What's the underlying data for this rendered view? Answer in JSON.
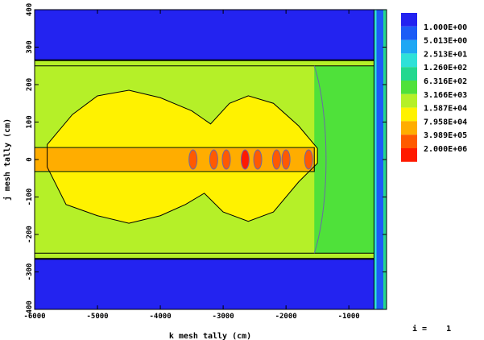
{
  "chart_data": {
    "type": "heatmap",
    "title": "",
    "xlabel": "k mesh tally (cm)",
    "ylabel": "j mesh tally (cm)",
    "xlim": [
      -6000,
      -400
    ],
    "ylim": [
      -400,
      400
    ],
    "xticks": [
      "-6000",
      "-5000",
      "-4000",
      "-3000",
      "-2000",
      "-1000"
    ],
    "yticks": [
      "-400",
      "-300",
      "-200",
      "-100",
      "0",
      "100",
      "200",
      "300",
      "400"
    ],
    "legend_position": "right",
    "legend": [
      {
        "label": "",
        "color": "#2323f0"
      },
      {
        "label": "1.000E+00",
        "color": "#1c5cf6"
      },
      {
        "label": "5.013E+00",
        "color": "#1ea7f4"
      },
      {
        "label": "2.513E+01",
        "color": "#2fe1d8"
      },
      {
        "label": "1.260E+02",
        "color": "#23d88f"
      },
      {
        "label": "6.316E+02",
        "color": "#4fe13a"
      },
      {
        "label": "3.166E+03",
        "color": "#b5f028"
      },
      {
        "label": "1.587E+04",
        "color": "#fff200"
      },
      {
        "label": "7.958E+04",
        "color": "#ffad00"
      },
      {
        "label": "3.989E+05",
        "color": "#ff5a00"
      },
      {
        "label": "2.000E+06",
        "color": "#ff1a00"
      }
    ],
    "regions": [
      {
        "name": "upper-blue-band",
        "x": [
          -6000,
          -600
        ],
        "y": [
          265,
          400
        ],
        "color_level": 0
      },
      {
        "name": "lower-blue-band",
        "x": [
          -6000,
          -600
        ],
        "y": [
          -400,
          -265
        ],
        "color_level": 0
      },
      {
        "name": "left-light-green",
        "x": [
          -6000,
          -1550
        ],
        "y": [
          -250,
          250
        ],
        "color_level": 6
      },
      {
        "name": "right-green-zone",
        "x": [
          -1550,
          -600
        ],
        "y": [
          -250,
          250
        ],
        "color_level": 5
      },
      {
        "name": "yellow-region",
        "x": [
          -5800,
          -1500
        ],
        "y": [
          -170,
          185
        ],
        "color_level": 7
      },
      {
        "name": "orange-core",
        "x": [
          -6000,
          -1550
        ],
        "y": [
          -30,
          30
        ],
        "color_level": 8
      },
      {
        "name": "right-edge-cyan-strip",
        "x": [
          -600,
          -450
        ],
        "y": [
          -400,
          400
        ],
        "color_level": 3
      }
    ],
    "hotspots": [
      {
        "x": -3480,
        "y": 0,
        "level": 9
      },
      {
        "x": -3150,
        "y": 0,
        "level": 9
      },
      {
        "x": -2950,
        "y": 0,
        "level": 9
      },
      {
        "x": -2650,
        "y": 0,
        "level": 10
      },
      {
        "x": -2450,
        "y": 0,
        "level": 9
      },
      {
        "x": -2150,
        "y": 0,
        "level": 9
      },
      {
        "x": -2000,
        "y": 0,
        "level": 9
      },
      {
        "x": -1640,
        "y": 0,
        "level": 9
      }
    ]
  },
  "annotation": {
    "label": "i =",
    "value": "1"
  }
}
